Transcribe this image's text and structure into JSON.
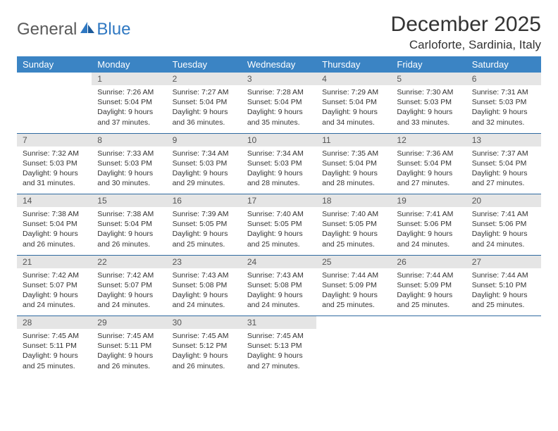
{
  "logo": {
    "text1": "General",
    "text2": "Blue"
  },
  "title": "December 2025",
  "location": "Carloforte, Sardinia, Italy",
  "colors": {
    "header_bg": "#3b84c4",
    "daynum_bg": "#e5e5e5",
    "week_border": "#2f6aa0",
    "logo_blue": "#2f78c2",
    "logo_gray": "#5a5a5a"
  },
  "weekdays": [
    "Sunday",
    "Monday",
    "Tuesday",
    "Wednesday",
    "Thursday",
    "Friday",
    "Saturday"
  ],
  "weeks": [
    [
      null,
      {
        "n": "1",
        "sr": "7:26 AM",
        "ss": "5:04 PM",
        "dl": "9 hours and 37 minutes."
      },
      {
        "n": "2",
        "sr": "7:27 AM",
        "ss": "5:04 PM",
        "dl": "9 hours and 36 minutes."
      },
      {
        "n": "3",
        "sr": "7:28 AM",
        "ss": "5:04 PM",
        "dl": "9 hours and 35 minutes."
      },
      {
        "n": "4",
        "sr": "7:29 AM",
        "ss": "5:04 PM",
        "dl": "9 hours and 34 minutes."
      },
      {
        "n": "5",
        "sr": "7:30 AM",
        "ss": "5:03 PM",
        "dl": "9 hours and 33 minutes."
      },
      {
        "n": "6",
        "sr": "7:31 AM",
        "ss": "5:03 PM",
        "dl": "9 hours and 32 minutes."
      }
    ],
    [
      {
        "n": "7",
        "sr": "7:32 AM",
        "ss": "5:03 PM",
        "dl": "9 hours and 31 minutes."
      },
      {
        "n": "8",
        "sr": "7:33 AM",
        "ss": "5:03 PM",
        "dl": "9 hours and 30 minutes."
      },
      {
        "n": "9",
        "sr": "7:34 AM",
        "ss": "5:03 PM",
        "dl": "9 hours and 29 minutes."
      },
      {
        "n": "10",
        "sr": "7:34 AM",
        "ss": "5:03 PM",
        "dl": "9 hours and 28 minutes."
      },
      {
        "n": "11",
        "sr": "7:35 AM",
        "ss": "5:04 PM",
        "dl": "9 hours and 28 minutes."
      },
      {
        "n": "12",
        "sr": "7:36 AM",
        "ss": "5:04 PM",
        "dl": "9 hours and 27 minutes."
      },
      {
        "n": "13",
        "sr": "7:37 AM",
        "ss": "5:04 PM",
        "dl": "9 hours and 27 minutes."
      }
    ],
    [
      {
        "n": "14",
        "sr": "7:38 AM",
        "ss": "5:04 PM",
        "dl": "9 hours and 26 minutes."
      },
      {
        "n": "15",
        "sr": "7:38 AM",
        "ss": "5:04 PM",
        "dl": "9 hours and 26 minutes."
      },
      {
        "n": "16",
        "sr": "7:39 AM",
        "ss": "5:05 PM",
        "dl": "9 hours and 25 minutes."
      },
      {
        "n": "17",
        "sr": "7:40 AM",
        "ss": "5:05 PM",
        "dl": "9 hours and 25 minutes."
      },
      {
        "n": "18",
        "sr": "7:40 AM",
        "ss": "5:05 PM",
        "dl": "9 hours and 25 minutes."
      },
      {
        "n": "19",
        "sr": "7:41 AM",
        "ss": "5:06 PM",
        "dl": "9 hours and 24 minutes."
      },
      {
        "n": "20",
        "sr": "7:41 AM",
        "ss": "5:06 PM",
        "dl": "9 hours and 24 minutes."
      }
    ],
    [
      {
        "n": "21",
        "sr": "7:42 AM",
        "ss": "5:07 PM",
        "dl": "9 hours and 24 minutes."
      },
      {
        "n": "22",
        "sr": "7:42 AM",
        "ss": "5:07 PM",
        "dl": "9 hours and 24 minutes."
      },
      {
        "n": "23",
        "sr": "7:43 AM",
        "ss": "5:08 PM",
        "dl": "9 hours and 24 minutes."
      },
      {
        "n": "24",
        "sr": "7:43 AM",
        "ss": "5:08 PM",
        "dl": "9 hours and 24 minutes."
      },
      {
        "n": "25",
        "sr": "7:44 AM",
        "ss": "5:09 PM",
        "dl": "9 hours and 25 minutes."
      },
      {
        "n": "26",
        "sr": "7:44 AM",
        "ss": "5:09 PM",
        "dl": "9 hours and 25 minutes."
      },
      {
        "n": "27",
        "sr": "7:44 AM",
        "ss": "5:10 PM",
        "dl": "9 hours and 25 minutes."
      }
    ],
    [
      {
        "n": "28",
        "sr": "7:45 AM",
        "ss": "5:11 PM",
        "dl": "9 hours and 25 minutes."
      },
      {
        "n": "29",
        "sr": "7:45 AM",
        "ss": "5:11 PM",
        "dl": "9 hours and 26 minutes."
      },
      {
        "n": "30",
        "sr": "7:45 AM",
        "ss": "5:12 PM",
        "dl": "9 hours and 26 minutes."
      },
      {
        "n": "31",
        "sr": "7:45 AM",
        "ss": "5:13 PM",
        "dl": "9 hours and 27 minutes."
      },
      null,
      null,
      null
    ]
  ],
  "labels": {
    "sunrise": "Sunrise:",
    "sunset": "Sunset:",
    "daylight": "Daylight:"
  }
}
